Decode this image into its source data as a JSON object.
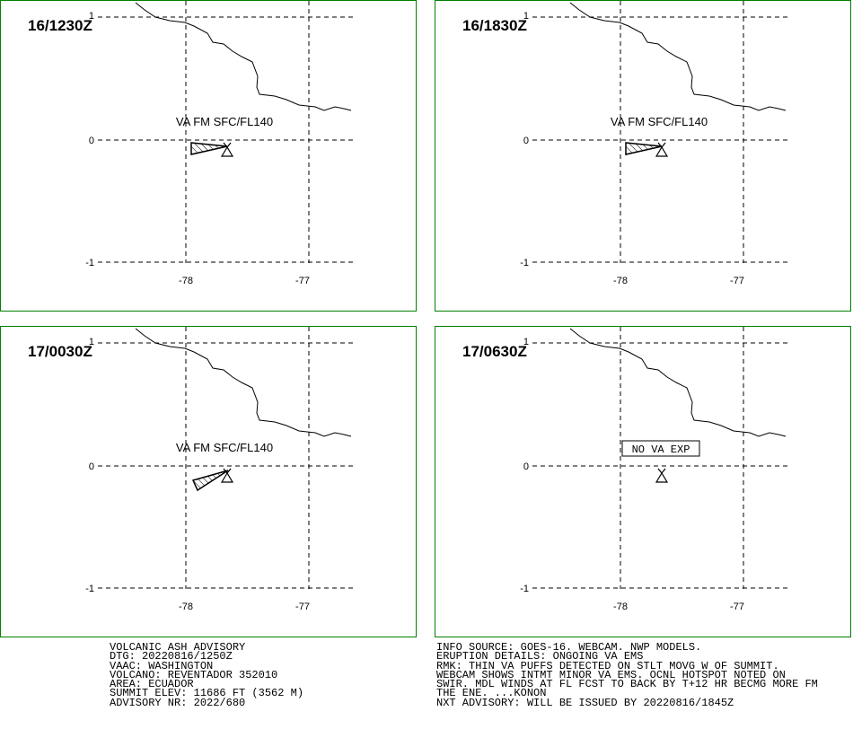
{
  "panels": [
    {
      "time": "16/1230Z",
      "label": "VA FM SFC/FL140",
      "boxed": false,
      "plume": "p1"
    },
    {
      "time": "16/1830Z",
      "label": "VA FM SFC/FL140",
      "boxed": false,
      "plume": "p1"
    },
    {
      "time": "17/0030Z",
      "label": "VA FM SFC/FL140",
      "boxed": false,
      "plume": "p2"
    },
    {
      "time": "17/0630Z",
      "label": "NO VA EXP",
      "boxed": true,
      "plume": "none"
    }
  ],
  "axes": {
    "lat_labels": [
      "1",
      "0",
      "-1"
    ],
    "lon_labels": [
      "-78",
      "-77"
    ]
  },
  "footer_left": [
    "VOLCANIC ASH ADVISORY",
    "DTG: 20220816/1250Z",
    "VAAC: WASHINGTON",
    "VOLCANO: REVENTADOR 352010",
    "AREA: ECUADOR",
    "SUMMIT ELEV: 11686 FT (3562 M)",
    "ADVISORY NR: 2022/680"
  ],
  "footer_right": [
    "INFO SOURCE: GOES-16. WEBCAM. NWP MODELS.",
    "ERUPTION DETAILS: ONGOING VA EMS",
    "RMK: THIN VA PUFFS DETECTED ON STLT MOVG W OF SUMMIT.",
    "WEBCAM SHOWS INTMT MINOR VA EMS. OCNL HOTSPOT NOTED ON",
    "SWIR. MDL WINDS AT FL FCST TO BACK BY T+12 HR BECMG MORE FM",
    "THE ENE. ...KONON",
    "NXT ADVISORY: WILL BE ISSUED BY 20220816/1845Z"
  ],
  "colors": {
    "border": "#008000",
    "line": "#000000"
  }
}
